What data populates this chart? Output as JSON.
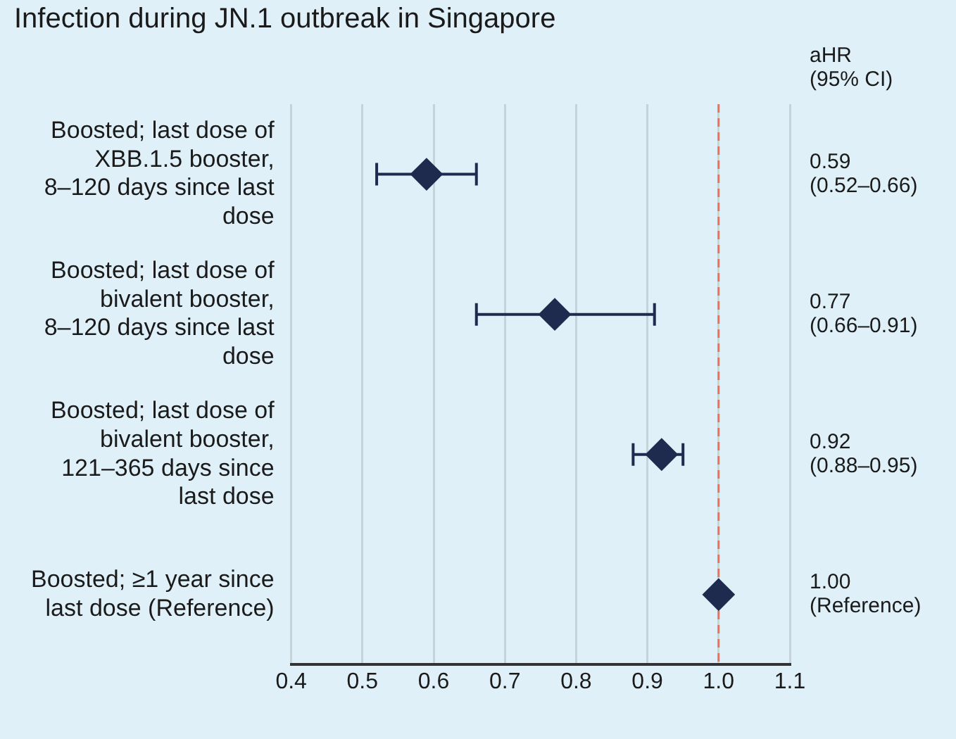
{
  "chart_data": {
    "type": "scatter",
    "orientation": "horizontal",
    "title": "Infection during JN.1 outbreak in Singapore",
    "categories": [
      "Boosted; last dose of XBB.1.5 booster, 8–120 days since last dose",
      "Boosted; last dose of bivalent booster, 8–120 days since last dose",
      "Boosted; last dose of bivalent booster, 121–365 days since last dose",
      "Boosted; ≥1 year since last dose (Reference)"
    ],
    "values": [
      0.59,
      0.77,
      0.92,
      1.0
    ],
    "errors": [
      [
        0.52,
        0.66
      ],
      [
        0.66,
        0.91
      ],
      [
        0.88,
        0.95
      ],
      null
    ],
    "value_labels": [
      "0.59 (0.52–0.66)",
      "0.77 (0.66–0.91)",
      "0.92 (0.88–0.95)",
      "1.00 (Reference)"
    ],
    "color": "#1e2b4f",
    "marker": "diamond",
    "annotations": [
      "aHR (95% CI)"
    ],
    "xlim": [
      0.4,
      1.1
    ],
    "xticks": [
      0.4,
      0.5,
      0.6,
      0.7,
      0.8,
      0.9,
      {
        "value": 1.0,
        "label": "1.0"
      },
      1.1
    ],
    "ref_lines": [
      {
        "axis": "x",
        "value": 1.0,
        "color": "#e8735a",
        "line_style": "dashed"
      }
    ],
    "grid": "x",
    "legend": false
  }
}
